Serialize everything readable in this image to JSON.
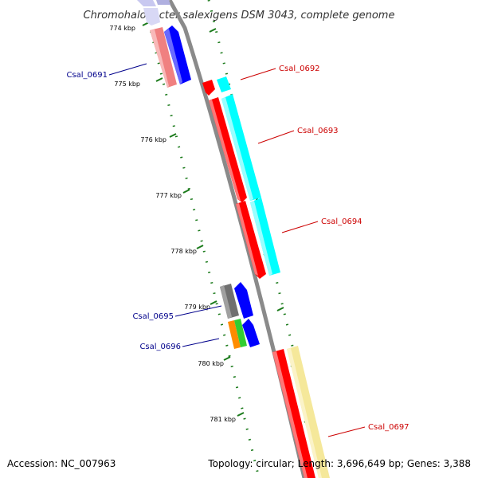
{
  "title": "Chromohalobacter salexigens DSM 3043, complete genome",
  "accession": "Accession: NC_007963",
  "summary": "Topology: circular; Length: 3,696,649 bp; Genes: 3,388",
  "colors": {
    "backbone": "#8a8a8a",
    "ticks": "#1a7a1a",
    "label_blue": "#00008b",
    "label_red": "#cc0000",
    "red": "#ff0000",
    "cyan": "#00ffff",
    "blue": "#0000ff",
    "pink": "#f08080",
    "lavender": "#c8c8f0",
    "gray": "#707070",
    "orange": "#ff8c00",
    "green": "#32cd32",
    "yellow": "#f5e89a"
  },
  "axis": {
    "ticks": [
      {
        "label": "774 kbp",
        "kbp": 774
      },
      {
        "label": "775 kbp",
        "kbp": 775
      },
      {
        "label": "776 kbp",
        "kbp": 776
      },
      {
        "label": "777 kbp",
        "kbp": 777
      },
      {
        "label": "778 kbp",
        "kbp": 778
      },
      {
        "label": "779 kbp",
        "kbp": 779
      },
      {
        "label": "780 kbp",
        "kbp": 780
      },
      {
        "label": "781 kbp",
        "kbp": 781
      }
    ]
  },
  "genes": [
    {
      "id": "Csal_0691",
      "label": "Csal_0691",
      "strand": "-"
    },
    {
      "id": "Csal_0692",
      "label": "Csal_0692",
      "strand": "+"
    },
    {
      "id": "Csal_0693",
      "label": "Csal_0693",
      "strand": "+"
    },
    {
      "id": "Csal_0694",
      "label": "Csal_0694",
      "strand": "+"
    },
    {
      "id": "Csal_0695",
      "label": "Csal_0695",
      "strand": "-"
    },
    {
      "id": "Csal_0696",
      "label": "Csal_0696",
      "strand": "-"
    },
    {
      "id": "Csal_0697",
      "label": "Csal_0697",
      "strand": "+"
    }
  ]
}
